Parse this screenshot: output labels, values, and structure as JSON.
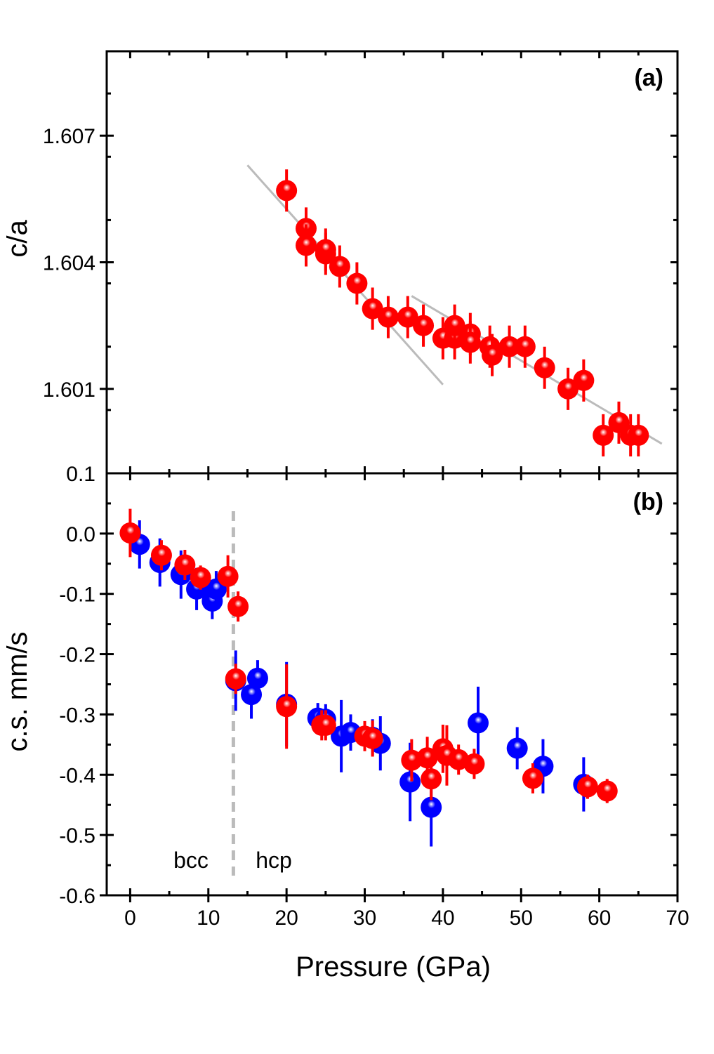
{
  "chart_data": [
    {
      "type": "scatter",
      "panel_label": "(a)",
      "ylabel": "c/a",
      "xlim": [
        -3,
        70
      ],
      "ylim": [
        1.599,
        1.609
      ],
      "yticks": [
        {
          "value": 1.607,
          "label": "1.607"
        },
        {
          "value": 1.604,
          "label": "1.604"
        },
        {
          "value": 1.601,
          "label": "1.601"
        }
      ],
      "bottom_label": "0.1",
      "grid": false,
      "series": [
        {
          "color": "#ff0000",
          "x": [
            20.0,
            22.5,
            22.5,
            25.0,
            25.0,
            26.8,
            29.0,
            31.0,
            33.0,
            35.5,
            37.5,
            40.0,
            41.5,
            41.5,
            43.5,
            43.5,
            46.0,
            46.3,
            48.5,
            50.5,
            53.0,
            56.0,
            58.0,
            60.5,
            62.5,
            64.0,
            65.0
          ],
          "y": [
            1.6057,
            1.6048,
            1.6044,
            1.6042,
            1.6043,
            1.6039,
            1.6035,
            1.6029,
            1.6027,
            1.6027,
            1.6025,
            1.6022,
            1.6022,
            1.6025,
            1.6023,
            1.6021,
            1.602,
            1.6018,
            1.602,
            1.602,
            1.6015,
            1.601,
            1.6012,
            1.5999,
            1.6002,
            1.5999,
            1.5999
          ],
          "yerr": [
            0.0005,
            0.0005,
            0.0005,
            0.0005,
            0.0005,
            0.0005,
            0.0005,
            0.0005,
            0.0005,
            0.0005,
            0.0005,
            0.0005,
            0.0005,
            0.0005,
            0.0005,
            0.0005,
            0.0005,
            0.0005,
            0.0005,
            0.0005,
            0.0005,
            0.0005,
            0.0005,
            0.0005,
            0.0005,
            0.0005,
            0.0005
          ]
        }
      ],
      "fit_lines": [
        {
          "color": "#bbbbbb",
          "x": [
            15,
            40
          ],
          "y": [
            1.6063,
            1.6011
          ]
        },
        {
          "color": "#bbbbbb",
          "x": [
            36,
            68
          ],
          "y": [
            1.6032,
            1.5997
          ]
        }
      ]
    },
    {
      "type": "scatter",
      "panel_label": "(b)",
      "xlabel": "Pressure (GPa)",
      "ylabel": "c.s. mm/s",
      "xlim": [
        -3,
        70
      ],
      "ylim": [
        -0.6,
        0.1
      ],
      "xticks": [
        0,
        10,
        20,
        30,
        40,
        50,
        60,
        70
      ],
      "yticks": [
        {
          "value": 0.0,
          "label": "0.0"
        },
        {
          "value": -0.1,
          "label": "-0.1"
        },
        {
          "value": -0.2,
          "label": "-0.2"
        },
        {
          "value": -0.3,
          "label": "-0.3"
        },
        {
          "value": -0.4,
          "label": "-0.4"
        },
        {
          "value": -0.5,
          "label": "-0.5"
        },
        {
          "value": -0.6,
          "label": "-0.6"
        }
      ],
      "phase_boundary": {
        "x": 13.2,
        "color": "#bbbbbb",
        "left_label": "bcc",
        "right_label": "hcp"
      },
      "grid": false,
      "series": [
        {
          "color": "#0000ff",
          "x": [
            1.2,
            3.8,
            6.5,
            8.5,
            10.5,
            11.0,
            13.5,
            15.5,
            16.3,
            20.0,
            24.0,
            25.0,
            27.0,
            28.2,
            31.0,
            32.0,
            35.8,
            38.5,
            44.5,
            49.5,
            52.8,
            58.0
          ],
          "y": [
            -0.018,
            -0.048,
            -0.068,
            -0.092,
            -0.112,
            -0.092,
            -0.244,
            -0.267,
            -0.24,
            -0.283,
            -0.306,
            -0.308,
            -0.336,
            -0.33,
            -0.338,
            -0.348,
            -0.412,
            -0.454,
            -0.314,
            -0.356,
            -0.386,
            -0.416
          ],
          "yerr": [
            0.04,
            0.04,
            0.04,
            0.035,
            0.03,
            0.03,
            0.05,
            0.04,
            0.03,
            0.07,
            0.025,
            0.025,
            0.06,
            0.03,
            0.03,
            0.045,
            0.065,
            0.065,
            0.06,
            0.035,
            0.045,
            0.045
          ]
        },
        {
          "color": "#ff0000",
          "x": [
            0.0,
            4.0,
            7.0,
            9.0,
            12.5,
            13.8,
            13.5,
            20.0,
            24.5,
            25.0,
            30.0,
            31.0,
            36.0,
            38.0,
            38.5,
            40.0,
            40.5,
            42.0,
            44.0,
            51.5,
            58.5,
            61.0
          ],
          "y": [
            0.001,
            -0.036,
            -0.052,
            -0.073,
            -0.071,
            -0.121,
            -0.241,
            -0.287,
            -0.318,
            -0.318,
            -0.336,
            -0.34,
            -0.376,
            -0.372,
            -0.407,
            -0.357,
            -0.368,
            -0.375,
            -0.382,
            -0.406,
            -0.42,
            -0.427
          ],
          "yerr": [
            0.04,
            0.025,
            0.025,
            0.02,
            0.035,
            0.025,
            0.025,
            0.07,
            0.025,
            0.025,
            0.025,
            0.03,
            0.035,
            0.035,
            0.035,
            0.04,
            0.05,
            0.025,
            0.025,
            0.025,
            0.02,
            0.02
          ]
        }
      ]
    }
  ]
}
